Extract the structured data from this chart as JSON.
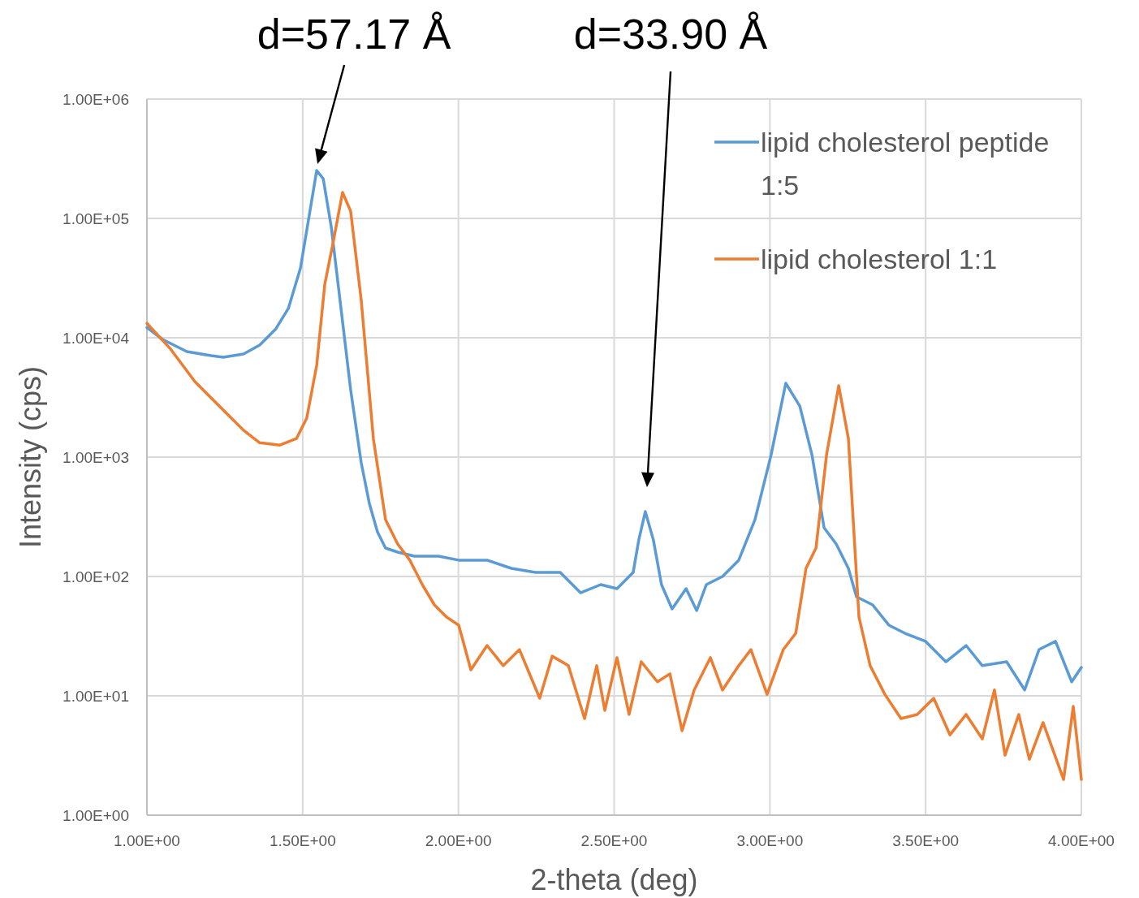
{
  "chart_data": {
    "type": "line",
    "xlabel": "2-theta (deg)",
    "ylabel": "Intensity (cps)",
    "log": "y",
    "grid": true,
    "legend": "top right",
    "marker": "none",
    "line_style": "solid",
    "xlim": [
      1,
      4
    ],
    "ylim": [
      1,
      1000000
    ],
    "xticks": [
      {
        "value": 1,
        "label": "1.00E+00"
      },
      {
        "value": 1.5,
        "label": "1.50E+00"
      },
      {
        "value": 2,
        "label": "2.00E+00"
      },
      {
        "value": 2.5,
        "label": "2.50E+00"
      },
      {
        "value": 3,
        "label": "3.00E+00"
      },
      {
        "value": 3.5,
        "label": "3.50E+00"
      },
      {
        "value": 4,
        "label": "4.00E+00"
      }
    ],
    "yticks": [
      {
        "value": 1,
        "label": "1.00E+00"
      },
      {
        "value": 10,
        "label": "1.00E+01"
      },
      {
        "value": 100,
        "label": "1.00E+02"
      },
      {
        "value": 1000,
        "label": "1.00E+03"
      },
      {
        "value": 10000,
        "label": "1.00E+04"
      },
      {
        "value": 100000,
        "label": "1.00E+05"
      },
      {
        "value": 1000000,
        "label": "1.00E+06"
      }
    ],
    "annotations": [
      {
        "text": "d=57.17 Å",
        "x": 1.545,
        "y": 252000
      },
      "d=33.90 Å"
    ],
    "series": [
      {
        "name": "lipid cholesterol peptide 1:5",
        "color": "#5b9bd5",
        "x": [
          1.0,
          1.05,
          1.128,
          1.206,
          1.245,
          1.31,
          1.362,
          1.414,
          1.454,
          1.493,
          1.519,
          1.545,
          1.566,
          1.592,
          1.623,
          1.654,
          1.688,
          1.714,
          1.74,
          1.766,
          1.805,
          1.858,
          1.936,
          2.001,
          2.092,
          2.17,
          2.248,
          2.327,
          2.392,
          2.457,
          2.509,
          2.561,
          2.579,
          2.6,
          2.626,
          2.652,
          2.686,
          2.731,
          2.765,
          2.796,
          2.848,
          2.9,
          2.952,
          3.004,
          3.051,
          3.096,
          3.135,
          3.174,
          3.213,
          3.252,
          3.278,
          3.33,
          3.382,
          3.434,
          3.5,
          3.565,
          3.63,
          3.682,
          3.76,
          3.818,
          3.864,
          3.917,
          3.969,
          4.0
        ],
        "values": [
          12200,
          9690,
          7660,
          7080,
          6870,
          7310,
          8690,
          11900,
          17600,
          38500,
          98500,
          252000,
          215000,
          84100,
          17600,
          3670,
          896,
          410,
          237,
          173,
          160,
          148,
          148,
          137,
          137,
          117,
          108,
          108,
          73,
          85.5,
          79,
          108,
          202,
          350,
          202,
          85.5,
          53.5,
          79,
          51.8,
          85.5,
          100,
          137,
          299,
          1047,
          4160,
          2680,
          1047,
          256,
          187,
          117,
          67.6,
          57.8,
          39.1,
          33.4,
          28.6,
          19.3,
          26.4,
          17.9,
          19.3,
          11.2,
          24.4,
          28.6,
          13.1,
          17.3
        ]
      },
      {
        "name": "lipid cholesterol 1:1",
        "color": "#ed7d31",
        "x": [
          1.0,
          1.076,
          1.154,
          1.232,
          1.31,
          1.362,
          1.427,
          1.48,
          1.513,
          1.545,
          1.571,
          1.597,
          1.628,
          1.654,
          1.688,
          1.727,
          1.766,
          1.805,
          1.844,
          1.884,
          1.923,
          1.962,
          2.001,
          2.04,
          2.092,
          2.144,
          2.196,
          2.261,
          2.301,
          2.353,
          2.405,
          2.444,
          2.47,
          2.509,
          2.548,
          2.587,
          2.639,
          2.679,
          2.718,
          2.757,
          2.809,
          2.848,
          2.9,
          2.939,
          2.991,
          3.043,
          3.083,
          3.116,
          3.148,
          3.182,
          3.221,
          3.252,
          3.286,
          3.322,
          3.369,
          3.421,
          3.473,
          3.526,
          3.578,
          3.63,
          3.682,
          3.721,
          3.755,
          3.799,
          3.833,
          3.877,
          3.943,
          3.974,
          4.0
        ],
        "values": [
          13200,
          8040,
          4290,
          2680,
          1680,
          1320,
          1260,
          1430,
          2120,
          5870,
          28100,
          61500,
          165000,
          115000,
          20600,
          1430,
          299,
          187,
          137,
          85.5,
          57.8,
          45.7,
          39.1,
          16.5,
          26.4,
          17.9,
          24.4,
          9.54,
          21.5,
          17.9,
          6.45,
          17.9,
          7.55,
          20.9,
          6.98,
          19.3,
          13.1,
          15.3,
          5.1,
          11.2,
          20.9,
          11.2,
          17.9,
          24.4,
          10.3,
          24.4,
          33.4,
          117,
          173,
          1047,
          3970,
          1430,
          45.7,
          17.9,
          10.3,
          6.45,
          6.98,
          9.54,
          4.71,
          6.98,
          4.36,
          11.2,
          3.18,
          6.98,
          2.94,
          5.97,
          1.99,
          8.17,
          1.99
        ]
      }
    ]
  }
}
